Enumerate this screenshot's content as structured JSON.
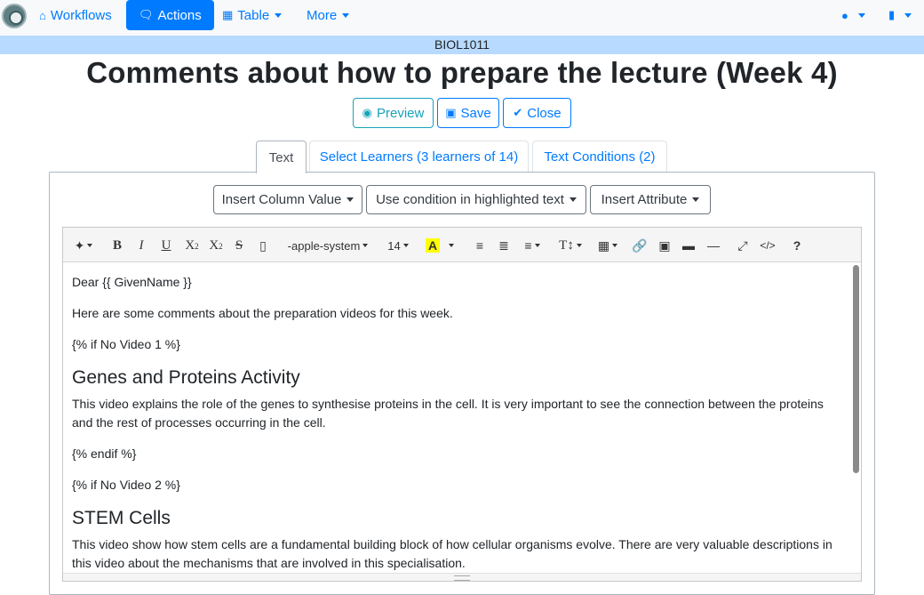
{
  "nav": {
    "workflows": "Workflows",
    "actions": "Actions",
    "table": "Table",
    "more": "More"
  },
  "course": "BIOL1011",
  "title": "Comments about how to prepare the lecture (Week 4)",
  "buttons": {
    "preview": "Preview",
    "save": "Save",
    "close": "Close"
  },
  "tabs": {
    "text": "Text",
    "learners": "Select Learners (3 learners of 14)",
    "conditions": "Text Conditions (2)"
  },
  "dropdowns": {
    "column": "Insert Column Value",
    "condition": "Use condition in highlighted text",
    "attribute": "Insert Attribute"
  },
  "toolbar": {
    "font_name": "-apple-system",
    "font_size": "14",
    "bold": "B",
    "italic": "I",
    "underline": "U",
    "help": "?"
  },
  "content": {
    "p1": "Dear {{ GivenName }}",
    "p2": "Here are some comments about the preparation videos for this week.",
    "p3": "{% if No Video 1 %}",
    "h1": "Genes and Proteins Activity",
    "p4": "This video explains the role of the genes to synthesise proteins in the cell. It is very important to see the connection between the proteins and the rest of processes occurring in the cell.",
    "p5": "{% endif %}",
    "p6": "{% if No Video 2 %}",
    "h2": "STEM Cells",
    "p7": "This video show how stem cells are a fundamental building block of how cellular organisms evolve. There are very valuable descriptions in this video about the mechanisms that are involved in this specialisation."
  },
  "colors": {
    "primary": "#007bff",
    "info": "#17a2b8",
    "course_bar": "#b8daff"
  }
}
